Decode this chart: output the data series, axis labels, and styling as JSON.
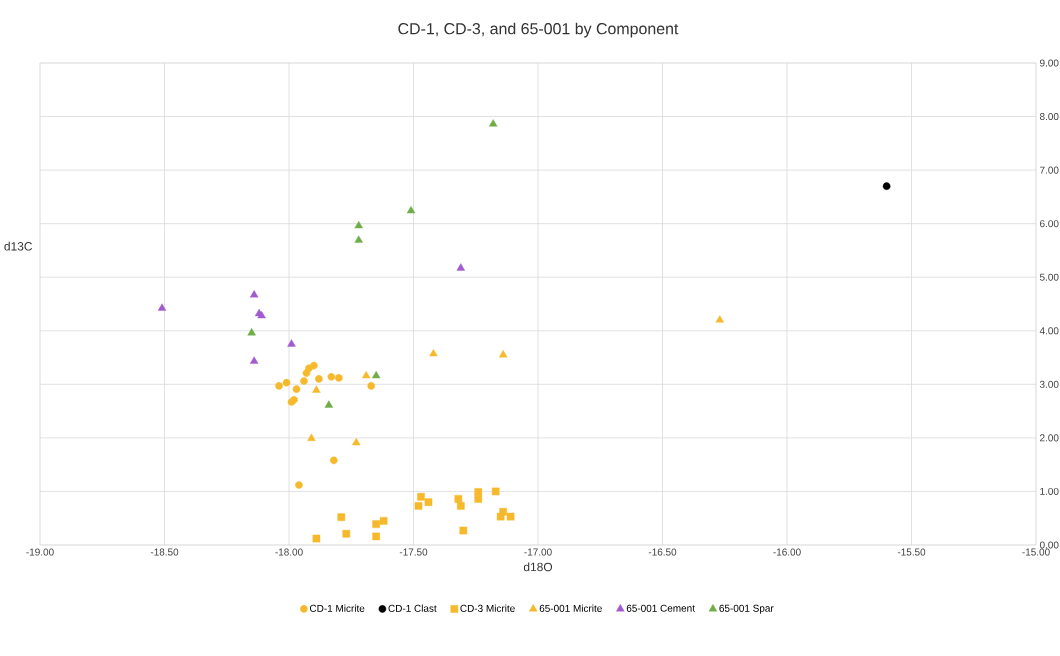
{
  "chart_data": {
    "type": "scatter",
    "title": "CD-1, CD-3, and 65-001 by Component",
    "xlabel": "d18O",
    "ylabel": "d13C",
    "xlim": [
      -19,
      -15
    ],
    "ylim": [
      0,
      9
    ],
    "xticks": [
      {
        "value": -19,
        "label": "-19.00"
      },
      {
        "value": -18.5,
        "label": "-18.50"
      },
      {
        "value": -18,
        "label": "-18.00"
      },
      {
        "value": -17.5,
        "label": "-17.50"
      },
      {
        "value": -17,
        "label": "-17.00"
      },
      {
        "value": -16.5,
        "label": "-16.50"
      },
      {
        "value": -16,
        "label": "-16.00"
      },
      {
        "value": -15.5,
        "label": "-15.50"
      },
      {
        "value": -15,
        "label": "-15.00"
      }
    ],
    "yticks": [
      {
        "value": 0,
        "label": "0.00"
      },
      {
        "value": 1,
        "label": "1.00"
      },
      {
        "value": 2,
        "label": "2.00"
      },
      {
        "value": 3,
        "label": "3.00"
      },
      {
        "value": 4,
        "label": "4.00"
      },
      {
        "value": 5,
        "label": "5.00"
      },
      {
        "value": 6,
        "label": "6.00"
      },
      {
        "value": 7,
        "label": "7.00"
      },
      {
        "value": 8,
        "label": "8.00"
      },
      {
        "value": 9,
        "label": "9.00"
      }
    ],
    "grid": true,
    "legend": "bottom",
    "series": [
      {
        "name": "CD-1 Micrite",
        "color": "#f6b92b",
        "marker": "circle",
        "x": [
          -18.04,
          -18.01,
          -17.97,
          -17.94,
          -17.93,
          -17.92,
          -17.9,
          -17.88,
          -17.83,
          -17.8,
          -17.67,
          -17.99,
          -17.98,
          -17.82,
          -17.96
        ],
        "values": [
          2.97,
          3.03,
          2.91,
          3.06,
          3.21,
          3.3,
          3.35,
          3.1,
          3.14,
          3.12,
          2.97,
          2.67,
          2.71,
          1.58,
          1.12
        ]
      },
      {
        "name": "CD-1 Clast",
        "color": "#000000",
        "marker": "circle",
        "x": [
          -15.6
        ],
        "values": [
          6.7
        ]
      },
      {
        "name": "CD-3 Micrite",
        "color": "#f6b92b",
        "marker": "square",
        "x": [
          -17.47,
          -17.48,
          -17.44,
          -17.32,
          -17.31,
          -17.24,
          -17.24,
          -17.17,
          -17.14,
          -17.15,
          -17.11,
          -17.3,
          -17.65,
          -17.62,
          -17.65,
          -17.79,
          -17.77,
          -17.89
        ],
        "values": [
          0.9,
          0.73,
          0.8,
          0.86,
          0.73,
          0.99,
          0.86,
          1.0,
          0.62,
          0.53,
          0.53,
          0.27,
          0.39,
          0.45,
          0.16,
          0.52,
          0.21,
          0.12
        ]
      },
      {
        "name": "65-001 Micrite",
        "color": "#f6b92b",
        "marker": "triangle",
        "x": [
          -17.89,
          -17.91,
          -17.73,
          -17.69,
          -17.42,
          -17.14,
          -16.27
        ],
        "values": [
          2.89,
          1.99,
          1.91,
          3.16,
          3.57,
          3.55,
          4.2
        ]
      },
      {
        "name": "65-001 Cement",
        "color": "#a15bd0",
        "marker": "triangle",
        "x": [
          -18.51,
          -18.14,
          -18.12,
          -18.11,
          -18.14,
          -17.99,
          -17.31
        ],
        "values": [
          4.42,
          4.67,
          4.32,
          4.28,
          3.43,
          3.75,
          5.17
        ]
      },
      {
        "name": "65-001 Spar",
        "color": "#70ad47",
        "marker": "triangle",
        "x": [
          -18.15,
          -17.84,
          -17.65,
          -17.72,
          -17.72,
          -17.51,
          -17.18
        ],
        "values": [
          3.96,
          2.61,
          3.16,
          5.96,
          5.69,
          6.24,
          7.86
        ]
      }
    ]
  }
}
